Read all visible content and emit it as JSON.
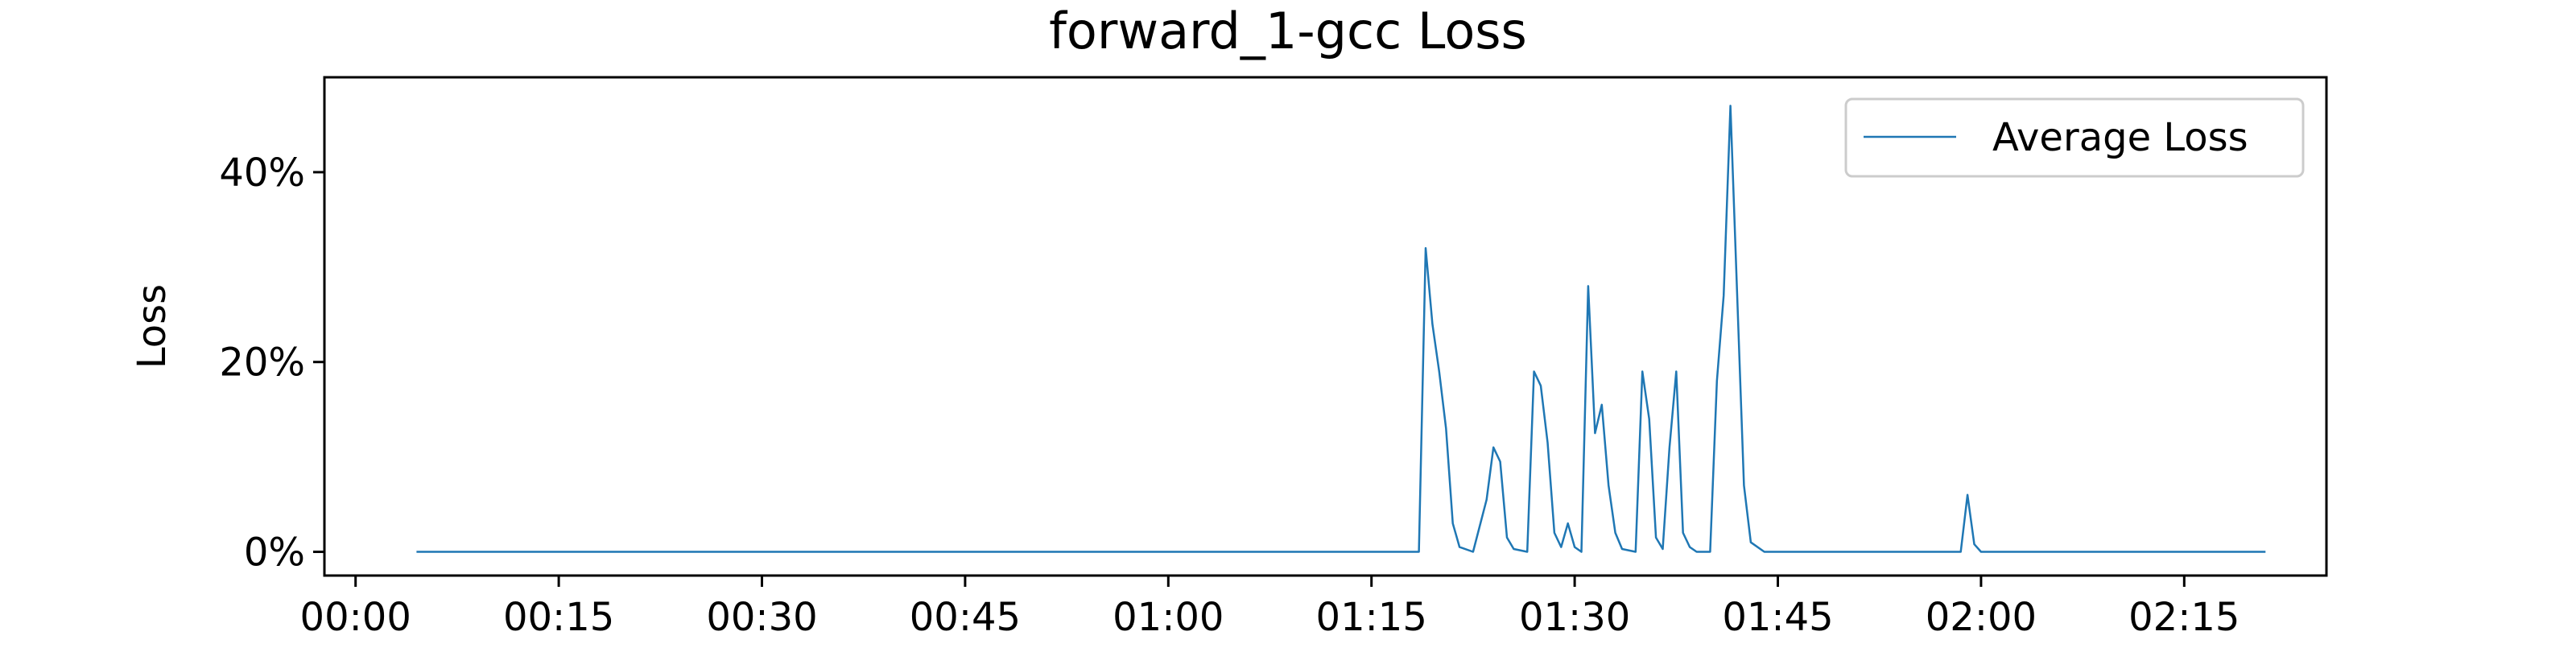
{
  "chart_data": {
    "type": "line",
    "title": "forward_1-gcc Loss",
    "xlabel": "",
    "ylabel": "Loss",
    "x_unit": "minutes",
    "xlim": [
      -2.3,
      145.5
    ],
    "ylim": [
      -2.5,
      50
    ],
    "x_ticks": [
      {
        "value": 0,
        "label": "00:00"
      },
      {
        "value": 15,
        "label": "00:15"
      },
      {
        "value": 30,
        "label": "00:30"
      },
      {
        "value": 45,
        "label": "00:45"
      },
      {
        "value": 60,
        "label": "01:00"
      },
      {
        "value": 75,
        "label": "01:15"
      },
      {
        "value": 90,
        "label": "01:30"
      },
      {
        "value": 105,
        "label": "01:45"
      },
      {
        "value": 120,
        "label": "02:00"
      },
      {
        "value": 135,
        "label": "02:15"
      }
    ],
    "y_ticks": [
      {
        "value": 0,
        "label": "0%"
      },
      {
        "value": 20,
        "label": "20%"
      },
      {
        "value": 40,
        "label": "40%"
      }
    ],
    "grid": false,
    "legend": {
      "position": "top-right",
      "entries": [
        "Average Loss"
      ]
    },
    "colors": {
      "line": "#1f77b4",
      "axes": "#000000",
      "legend_border": "#cccccc"
    },
    "series": [
      {
        "name": "Average Loss",
        "points": [
          [
            4.5,
            0
          ],
          [
            78.5,
            0
          ],
          [
            79.0,
            32
          ],
          [
            79.5,
            24
          ],
          [
            80.0,
            19
          ],
          [
            80.5,
            13
          ],
          [
            81.0,
            3
          ],
          [
            81.5,
            0.5
          ],
          [
            82.5,
            0
          ],
          [
            83.5,
            5.5
          ],
          [
            84.0,
            11
          ],
          [
            84.5,
            9.5
          ],
          [
            85.0,
            1.5
          ],
          [
            85.5,
            0.3
          ],
          [
            86.5,
            0
          ],
          [
            87.0,
            19
          ],
          [
            87.5,
            17.5
          ],
          [
            88.0,
            11.5
          ],
          [
            88.5,
            2
          ],
          [
            89.0,
            0.5
          ],
          [
            89.5,
            3
          ],
          [
            90.0,
            0.5
          ],
          [
            90.5,
            0
          ],
          [
            91.0,
            28
          ],
          [
            91.5,
            12.5
          ],
          [
            92.0,
            15.5
          ],
          [
            92.5,
            7
          ],
          [
            93.0,
            2
          ],
          [
            93.5,
            0.3
          ],
          [
            94.5,
            0
          ],
          [
            95.0,
            19
          ],
          [
            95.5,
            14
          ],
          [
            96.0,
            1.5
          ],
          [
            96.5,
            0.3
          ],
          [
            97.0,
            11
          ],
          [
            97.5,
            19
          ],
          [
            98.0,
            2
          ],
          [
            98.5,
            0.5
          ],
          [
            99.0,
            0
          ],
          [
            100.0,
            0
          ],
          [
            100.5,
            18
          ],
          [
            101.0,
            27
          ],
          [
            101.5,
            47
          ],
          [
            102.0,
            27
          ],
          [
            102.5,
            7
          ],
          [
            103.0,
            1
          ],
          [
            104.0,
            0
          ],
          [
            118.5,
            0
          ],
          [
            119.0,
            6
          ],
          [
            119.5,
            0.8
          ],
          [
            120.0,
            0
          ],
          [
            141.0,
            0
          ]
        ]
      }
    ]
  }
}
